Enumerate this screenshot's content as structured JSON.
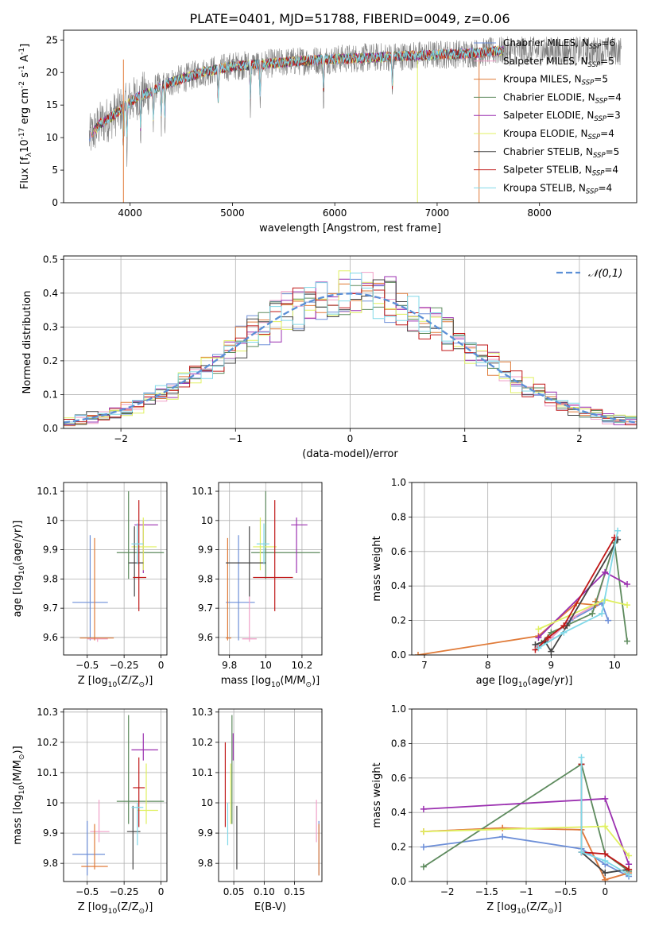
{
  "title": "PLATE=0401, MJD=51788, FIBERID=0049, z=0.06",
  "models": [
    {
      "label": "Chabrier MILES, N$_{SSP}$=6",
      "label_main": "Chabrier MILES, N",
      "label_tail": "=6",
      "color": "#6d8fd8"
    },
    {
      "label": "Salpeter MILES, N$_{SSP}$=5",
      "label_main": "Salpeter MILES, N",
      "label_tail": "=5",
      "color": "#f0a0c8"
    },
    {
      "label": "Kroupa MILES, N$_{SSP}$=5",
      "label_main": "Kroupa MILES, N",
      "label_tail": "=5",
      "color": "#e07b39"
    },
    {
      "label": "Chabrier ELODIE, N$_{SSP}$=4",
      "label_main": "Chabrier ELODIE, N",
      "label_tail": "=4",
      "color": "#5d8a5d"
    },
    {
      "label": "Salpeter ELODIE, N$_{SSP}$=3",
      "label_main": "Salpeter ELODIE, N",
      "label_tail": "=3",
      "color": "#9b30b0"
    },
    {
      "label": "Kroupa ELODIE, N$_{SSP}$=4",
      "label_main": "Kroupa ELODIE, N",
      "label_tail": "=4",
      "color": "#e0f060"
    },
    {
      "label": "Chabrier STELIB, N$_{SSP}$=5",
      "label_main": "Chabrier STELIB, N",
      "label_tail": "=5",
      "color": "#444444"
    },
    {
      "label": "Salpeter STELIB, N$_{SSP}$=4",
      "label_main": "Salpeter STELIB, N",
      "label_tail": "=4",
      "color": "#c01818"
    },
    {
      "label": "Kroupa STELIB, N$_{SSP}$=4",
      "label_main": "Kroupa STELIB, N",
      "label_tail": "=4",
      "color": "#80d8e8"
    }
  ],
  "chart_data": [
    {
      "id": "spectrum",
      "type": "line",
      "xlabel": "wavelength [Angstrom, rest frame]",
      "ylabel": "Flux [f$_\\lambda$10$^{-17}$ erg cm$^{-2}$ s$^{-1}$ A$^{-1}$]",
      "xlim": [
        3350,
        8950
      ],
      "ylim": [
        0,
        26.5
      ],
      "xticks": [
        4000,
        5000,
        6000,
        7000,
        8000
      ],
      "yticks": [
        0,
        5,
        10,
        15,
        20,
        25
      ],
      "data_color": "#808080",
      "data_anchor": {
        "x": [
          3600,
          3700,
          3800,
          3900,
          4000,
          4100,
          4200,
          4300,
          4400,
          4500,
          4700,
          5000,
          5300,
          5600,
          5900,
          6200,
          6500,
          6800,
          7100,
          7400,
          7600
        ],
        "y": [
          10,
          12,
          13,
          14.2,
          15.5,
          16.5,
          17,
          18,
          18.5,
          19,
          20,
          21,
          21.3,
          21.7,
          22,
          22.2,
          22.4,
          22.6,
          22.8,
          23,
          23.3
        ]
      },
      "absorption_lines": [
        3934,
        3969,
        4102,
        4227,
        4305,
        4340,
        4861,
        5175,
        5270,
        5890,
        6563
      ]
    },
    {
      "id": "residuals",
      "type": "histogram",
      "xlabel": "(data-model)/error",
      "ylabel": "Normed distribution",
      "xlim": [
        -2.5,
        2.5
      ],
      "ylim": [
        0,
        0.51
      ],
      "xticks": [
        -2,
        -1,
        0,
        1,
        2
      ],
      "yticks": [
        0.0,
        0.1,
        0.2,
        0.3,
        0.4,
        0.5
      ],
      "bin_width": 0.1,
      "reference": {
        "name": "$\\mathcal{N}(0,1)$",
        "mean": 0,
        "sigma": 1,
        "color": "#5b8fd6"
      }
    },
    {
      "id": "age-Z",
      "type": "errorbar",
      "xlabel": "Z [log$_{10}$(Z/Z$_\\odot$)]",
      "ylabel": "age  [log$_{10}$(age/yr)]",
      "xlim": [
        -0.66,
        0.04
      ],
      "ylim": [
        9.54,
        10.13
      ],
      "xticks": [
        -0.5,
        -0.25,
        0.0
      ],
      "yticks": [
        9.6,
        9.7,
        9.8,
        9.9,
        10.0,
        10.1
      ],
      "points": [
        {
          "x": -0.48,
          "xlo": -0.6,
          "xhi": -0.36,
          "y": 9.72,
          "ylo": 9.59,
          "yhi": 9.95
        },
        {
          "x": -0.43,
          "xlo": -0.5,
          "xhi": -0.36,
          "y": 9.595,
          "ylo": 9.585,
          "yhi": 9.6
        },
        {
          "x": -0.45,
          "xlo": -0.55,
          "xhi": -0.32,
          "y": 9.598,
          "ylo": 9.59,
          "yhi": 9.94
        },
        {
          "x": -0.22,
          "xlo": -0.3,
          "xhi": 0.02,
          "y": 9.89,
          "ylo": 9.8,
          "yhi": 10.1
        },
        {
          "x": -0.12,
          "xlo": -0.18,
          "xhi": -0.02,
          "y": 9.985,
          "ylo": 9.82,
          "yhi": 10.0
        },
        {
          "x": -0.12,
          "xlo": -0.2,
          "xhi": -0.03,
          "y": 9.91,
          "ylo": 9.83,
          "yhi": 10.01
        },
        {
          "x": -0.18,
          "xlo": -0.22,
          "xhi": -0.12,
          "y": 9.855,
          "ylo": 9.74,
          "yhi": 9.98
        },
        {
          "x": -0.15,
          "xlo": -0.19,
          "xhi": -0.1,
          "y": 9.805,
          "ylo": 9.69,
          "yhi": 10.07
        },
        {
          "x": -0.16,
          "xlo": -0.2,
          "xhi": -0.12,
          "y": 9.92,
          "ylo": 9.85,
          "yhi": 9.99
        }
      ]
    },
    {
      "id": "age-mass",
      "type": "errorbar",
      "xlabel": "mass [log$_{10}$(M/M$_\\odot$)]",
      "ylabel": "",
      "xlim": [
        9.74,
        10.31
      ],
      "ylim": [
        9.54,
        10.13
      ],
      "xticks": [
        9.8,
        10.0,
        10.2
      ],
      "yticks": [
        9.6,
        9.7,
        9.8,
        9.9,
        10.0,
        10.1
      ],
      "points": [
        {
          "x": 9.85,
          "xlo": 9.78,
          "xhi": 9.94,
          "y": 9.72,
          "ylo": 9.59,
          "yhi": 9.95
        },
        {
          "x": 9.91,
          "xlo": 9.87,
          "xhi": 9.95,
          "y": 9.595,
          "ylo": 9.585,
          "yhi": 9.74
        },
        {
          "x": 9.79,
          "xlo": 9.78,
          "xhi": 9.81,
          "y": 9.598,
          "ylo": 9.59,
          "yhi": 9.94
        },
        {
          "x": 10.0,
          "xlo": 9.92,
          "xhi": 10.3,
          "y": 9.89,
          "ylo": 9.8,
          "yhi": 10.1
        },
        {
          "x": 10.17,
          "xlo": 10.14,
          "xhi": 10.23,
          "y": 9.985,
          "ylo": 9.82,
          "yhi": 10.01
        },
        {
          "x": 9.97,
          "xlo": 9.93,
          "xhi": 10.06,
          "y": 9.91,
          "ylo": 9.83,
          "yhi": 10.01
        },
        {
          "x": 9.91,
          "xlo": 9.78,
          "xhi": 10.0,
          "y": 9.855,
          "ylo": 9.74,
          "yhi": 9.98
        },
        {
          "x": 10.05,
          "xlo": 9.93,
          "xhi": 10.15,
          "y": 9.805,
          "ylo": 9.69,
          "yhi": 10.07
        },
        {
          "x": 9.99,
          "xlo": 9.95,
          "xhi": 10.02,
          "y": 9.92,
          "ylo": 9.85,
          "yhi": 9.99
        }
      ]
    },
    {
      "id": "massweight-age",
      "type": "line",
      "xlabel": "age  [log$_{10}$(age/yr)]",
      "ylabel": "mass weight",
      "xlim": [
        6.8,
        10.35
      ],
      "ylim": [
        0,
        1.0
      ],
      "xticks": [
        7,
        8,
        9,
        10
      ],
      "yticks": [
        0.0,
        0.2,
        0.4,
        0.6,
        0.8,
        1.0
      ],
      "series": [
        {
          "x": [
            8.8,
            9.0,
            9.3,
            9.8,
            9.9
          ],
          "y": [
            0.05,
            0.1,
            0.2,
            0.3,
            0.2
          ]
        },
        {
          "x": [
            8.8,
            9.0,
            9.35,
            9.7,
            10.0
          ],
          "y": [
            0.05,
            0.1,
            0.22,
            0.29,
            0.65
          ]
        },
        {
          "x": [
            6.9,
            8.8,
            9.4,
            9.7,
            9.7
          ],
          "y": [
            0.0,
            0.11,
            0.3,
            0.29,
            0.31
          ]
        },
        {
          "x": [
            8.85,
            9.0,
            9.65,
            10.0,
            10.2
          ],
          "y": [
            0.07,
            0.13,
            0.24,
            0.65,
            0.08
          ]
        },
        {
          "x": [
            8.8,
            9.85,
            10.2
          ],
          "y": [
            0.1,
            0.48,
            0.41
          ]
        },
        {
          "x": [
            8.8,
            9.85,
            10.2
          ],
          "y": [
            0.15,
            0.32,
            0.29
          ]
        },
        {
          "x": [
            8.75,
            8.9,
            9.0,
            9.25,
            10.05
          ],
          "y": [
            0.06,
            0.08,
            0.02,
            0.17,
            0.67
          ]
        },
        {
          "x": [
            8.75,
            8.95,
            9.2,
            10.0
          ],
          "y": [
            0.03,
            0.1,
            0.17,
            0.68
          ]
        },
        {
          "x": [
            8.8,
            9.2,
            9.8,
            10.05
          ],
          "y": [
            0.04,
            0.13,
            0.24,
            0.72
          ]
        }
      ]
    },
    {
      "id": "mass-Z",
      "type": "errorbar",
      "xlabel": "Z [log$_{10}$(Z/Z$_\\odot$)]",
      "ylabel": "mass [log$_{10}$(M/M$_\\odot$)]",
      "xlim": [
        -0.66,
        0.04
      ],
      "ylim": [
        9.74,
        10.31
      ],
      "xticks": [
        -0.5,
        -0.25,
        0.0
      ],
      "yticks": [
        9.8,
        9.9,
        10.0,
        10.1,
        10.2,
        10.3
      ],
      "points": [
        {
          "x": -0.5,
          "xlo": -0.6,
          "xhi": -0.38,
          "y": 9.83,
          "ylo": 9.76,
          "yhi": 9.94
        },
        {
          "x": -0.42,
          "xlo": -0.48,
          "xhi": -0.35,
          "y": 9.905,
          "ylo": 9.87,
          "yhi": 10.01
        },
        {
          "x": -0.45,
          "xlo": -0.54,
          "xhi": -0.36,
          "y": 9.79,
          "ylo": 9.78,
          "yhi": 9.93
        },
        {
          "x": -0.22,
          "xlo": -0.3,
          "xhi": 0.02,
          "y": 10.005,
          "ylo": 9.93,
          "yhi": 10.29
        },
        {
          "x": -0.12,
          "xlo": -0.2,
          "xhi": -0.02,
          "y": 10.175,
          "ylo": 10.14,
          "yhi": 10.23
        },
        {
          "x": -0.1,
          "xlo": -0.16,
          "xhi": -0.02,
          "y": 9.975,
          "ylo": 9.93,
          "yhi": 10.13
        },
        {
          "x": -0.19,
          "xlo": -0.23,
          "xhi": -0.14,
          "y": 9.905,
          "ylo": 9.78,
          "yhi": 9.99
        },
        {
          "x": -0.15,
          "xlo": -0.19,
          "xhi": -0.11,
          "y": 10.05,
          "ylo": 9.92,
          "yhi": 10.15
        },
        {
          "x": -0.16,
          "xlo": -0.2,
          "xhi": -0.12,
          "y": 9.985,
          "ylo": 9.86,
          "yhi": 10.0
        }
      ]
    },
    {
      "id": "mass-EBV",
      "type": "errorbar",
      "xlabel": "E(B-V)",
      "ylabel": "",
      "xlim": [
        0.025,
        0.195
      ],
      "ylim": [
        9.74,
        10.31
      ],
      "xticks": [
        0.05,
        0.1,
        0.15
      ],
      "yticks": [
        9.8,
        9.9,
        10.0,
        10.1,
        10.2,
        10.3
      ],
      "points": [
        {
          "x": 0.19,
          "xlo": 0.19,
          "xhi": 0.19,
          "y": 9.83,
          "ylo": 9.76,
          "yhi": 9.94
        },
        {
          "x": 0.186,
          "xlo": 0.186,
          "xhi": 0.186,
          "y": 9.905,
          "ylo": 9.87,
          "yhi": 10.01
        },
        {
          "x": 0.19,
          "xlo": 0.19,
          "xhi": 0.19,
          "y": 9.79,
          "ylo": 9.76,
          "yhi": 9.93
        },
        {
          "x": 0.047,
          "xlo": 0.047,
          "xhi": 0.047,
          "y": 10.005,
          "ylo": 9.93,
          "yhi": 10.29
        },
        {
          "x": 0.049,
          "xlo": 0.049,
          "xhi": 0.049,
          "y": 10.175,
          "ylo": 10.14,
          "yhi": 10.23
        },
        {
          "x": 0.045,
          "xlo": 0.045,
          "xhi": 0.045,
          "y": 9.975,
          "ylo": 9.93,
          "yhi": 10.13
        },
        {
          "x": 0.055,
          "xlo": 0.055,
          "xhi": 0.055,
          "y": 9.905,
          "ylo": 9.78,
          "yhi": 9.99
        },
        {
          "x": 0.036,
          "xlo": 0.036,
          "xhi": 0.036,
          "y": 10.05,
          "ylo": 9.92,
          "yhi": 10.2
        },
        {
          "x": 0.04,
          "xlo": 0.04,
          "xhi": 0.04,
          "y": 9.985,
          "ylo": 9.86,
          "yhi": 10.0
        }
      ]
    },
    {
      "id": "massweight-Z",
      "type": "line",
      "xlabel": "Z [log$_{10}$(Z/Z$_\\odot$)]",
      "ylabel": "mass weight",
      "xlim": [
        -2.45,
        0.4
      ],
      "ylim": [
        0,
        1.0
      ],
      "xticks": [
        -2.0,
        -1.5,
        -1.0,
        -0.5,
        0.0
      ],
      "yticks": [
        0.0,
        0.2,
        0.4,
        0.6,
        0.8,
        1.0
      ],
      "series": [
        {
          "x": [
            -2.3,
            -1.3,
            -0.3,
            0.0,
            0.3
          ],
          "y": [
            0.2,
            0.26,
            0.19,
            0.1,
            0.03
          ]
        },
        {
          "x": [
            -2.3,
            -1.3,
            -0.3,
            0.0,
            0.3
          ],
          "y": [
            0.29,
            0.31,
            0.3,
            0.01,
            0.05
          ]
        },
        {
          "x": [
            -2.3,
            -1.3,
            -0.3,
            0.0,
            0.3
          ],
          "y": [
            0.29,
            0.31,
            0.3,
            0.01,
            0.05
          ]
        },
        {
          "x": [
            -2.3,
            -0.3,
            0.0,
            0.3
          ],
          "y": [
            0.085,
            0.68,
            0.16,
            0.06
          ]
        },
        {
          "x": [
            -2.3,
            0.0,
            0.3
          ],
          "y": [
            0.42,
            0.48,
            0.1
          ]
        },
        {
          "x": [
            -2.3,
            0.0,
            0.3
          ],
          "y": [
            0.29,
            0.32,
            0.15
          ]
        },
        {
          "x": [
            -0.3,
            -0.3,
            0.0,
            0.3
          ],
          "y": [
            0.68,
            0.17,
            0.05,
            0.07
          ]
        },
        {
          "x": [
            -0.3,
            -0.3,
            0.0,
            0.3
          ],
          "y": [
            0.68,
            0.17,
            0.16,
            0.07
          ]
        },
        {
          "x": [
            -0.3,
            -0.3,
            0.0,
            0.3
          ],
          "y": [
            0.72,
            0.17,
            0.12,
            0.04
          ]
        }
      ]
    }
  ]
}
